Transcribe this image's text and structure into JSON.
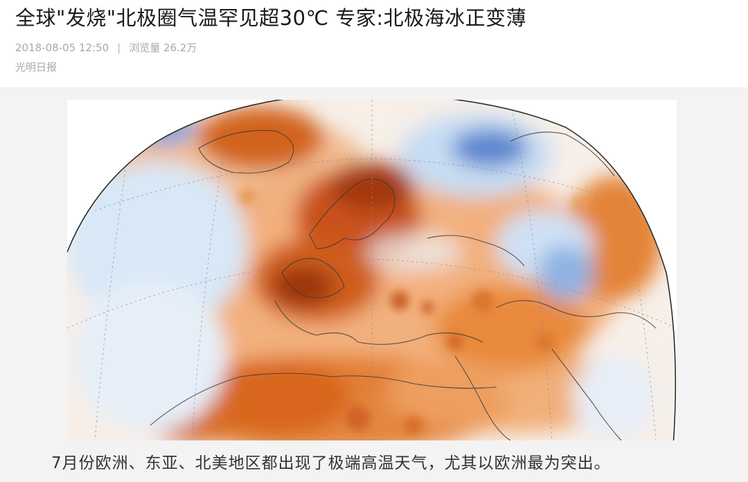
{
  "article": {
    "title": "全球\"发烧\"北极圈气温罕见超30℃ 专家:北极海冰正变薄",
    "date": "2018-08-05 12:50",
    "separator": "|",
    "views": "浏览量 26.2万",
    "source": "光明日报"
  },
  "figure": {
    "caption": "7月份欧洲、东亚、北美地区都出现了极端高温天气，尤其以欧洲最为突出。"
  },
  "colors": {
    "warm_strong": "#a0350a",
    "warm": "#e06a1c",
    "warm_light": "#f4b27a",
    "cool": "#bcd8f2",
    "cool_strong": "#3b6fc4"
  }
}
